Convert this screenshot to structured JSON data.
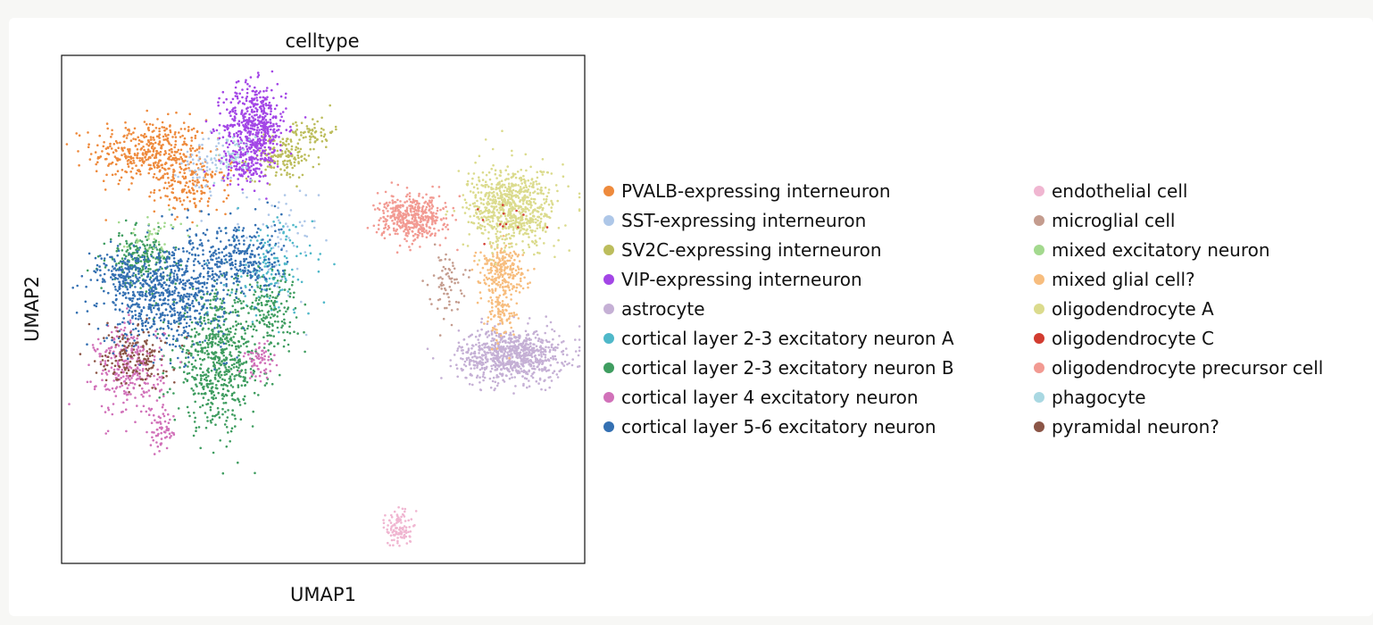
{
  "chart_data": {
    "type": "scatter",
    "title": "celltype",
    "xlabel": "UMAP1",
    "ylabel": "UMAP2",
    "xticks": "none",
    "yticks": "none",
    "grid": false,
    "legend_placement": "right",
    "legend_columns": 2,
    "xlim": [
      0,
      100
    ],
    "ylim": [
      0,
      100
    ],
    "series": [
      {
        "name": "PVALB-expressing interneuron",
        "color": "#ee8a3c",
        "clusters": [
          {
            "x": 17,
            "y": 81,
            "sx": 5.5,
            "sy": 3.2,
            "n": 420
          },
          {
            "x": 25,
            "y": 74,
            "sx": 3.5,
            "sy": 2.5,
            "n": 150
          }
        ]
      },
      {
        "name": "SST-expressing interneuron",
        "color": "#aec7e8",
        "clusters": [
          {
            "x": 28,
            "y": 79,
            "sx": 2.5,
            "sy": 3,
            "n": 70
          },
          {
            "x": 42,
            "y": 63,
            "sx": 3.5,
            "sy": 6,
            "n": 60
          }
        ]
      },
      {
        "name": "SV2C-expressing interneuron",
        "color": "#bcbd5c",
        "clusters": [
          {
            "x": 42,
            "y": 80,
            "sx": 3.2,
            "sy": 2.2,
            "n": 150
          },
          {
            "x": 48,
            "y": 85,
            "sx": 2,
            "sy": 1.5,
            "n": 60
          }
        ]
      },
      {
        "name": "VIP-expressing interneuron",
        "color": "#a346e6",
        "clusters": [
          {
            "x": 37,
            "y": 86,
            "sx": 3,
            "sy": 4.2,
            "n": 520
          },
          {
            "x": 35,
            "y": 79,
            "sx": 2,
            "sy": 2.5,
            "n": 120
          }
        ]
      },
      {
        "name": "astrocyte",
        "color": "#c5b0d5",
        "clusters": [
          {
            "x": 86,
            "y": 41,
            "sx": 5,
            "sy": 2.6,
            "n": 800
          }
        ]
      },
      {
        "name": "cortical layer 2-3 excitatory neuron A",
        "color": "#4fb8c9",
        "clusters": [
          {
            "x": 40,
            "y": 58,
            "sx": 4,
            "sy": 5,
            "n": 140
          }
        ]
      },
      {
        "name": "cortical layer 2-3 excitatory neuron B",
        "color": "#3f9d60",
        "clusters": [
          {
            "x": 30,
            "y": 40,
            "sx": 4.2,
            "sy": 6.5,
            "n": 650
          },
          {
            "x": 15,
            "y": 60,
            "sx": 3,
            "sy": 2.5,
            "n": 200
          },
          {
            "x": 40,
            "y": 50,
            "sx": 2.5,
            "sy": 4,
            "n": 160
          }
        ]
      },
      {
        "name": "cortical layer 4 excitatory neuron",
        "color": "#d171b9",
        "clusters": [
          {
            "x": 13,
            "y": 38,
            "sx": 3.2,
            "sy": 4.5,
            "n": 280
          },
          {
            "x": 38,
            "y": 40,
            "sx": 1.5,
            "sy": 1.8,
            "n": 60
          },
          {
            "x": 19,
            "y": 26,
            "sx": 1.2,
            "sy": 2.2,
            "n": 60
          }
        ]
      },
      {
        "name": "cortical layer 5-6 excitatory neuron",
        "color": "#3470b2",
        "clusters": [
          {
            "x": 20,
            "y": 53,
            "sx": 5.8,
            "sy": 5,
            "n": 750
          },
          {
            "x": 34,
            "y": 60,
            "sx": 4,
            "sy": 4,
            "n": 300
          },
          {
            "x": 11,
            "y": 57,
            "sx": 2.5,
            "sy": 2,
            "n": 100
          }
        ]
      },
      {
        "name": "endothelial cell",
        "color": "#f0b6d1",
        "clusters": [
          {
            "x": 64.5,
            "y": 7,
            "sx": 1.2,
            "sy": 1.8,
            "n": 110
          }
        ]
      },
      {
        "name": "microglial cell",
        "color": "#c49c8e",
        "clusters": [
          {
            "x": 73.5,
            "y": 55.5,
            "sx": 1.6,
            "sy": 3,
            "n": 70
          }
        ]
      },
      {
        "name": "mixed excitatory neuron",
        "color": "#a3d98e",
        "clusters": [
          {
            "x": 17,
            "y": 65,
            "sx": 3,
            "sy": 2,
            "n": 40
          }
        ]
      },
      {
        "name": "mixed glial cell?",
        "color": "#f7bd7e",
        "clusters": [
          {
            "x": 84,
            "y": 58,
            "sx": 2.4,
            "sy": 2.2,
            "n": 220
          },
          {
            "x": 84,
            "y": 50,
            "sx": 1.6,
            "sy": 2.8,
            "n": 120
          }
        ]
      },
      {
        "name": "oligodendrocyte A",
        "color": "#dbdb8d",
        "clusters": [
          {
            "x": 86,
            "y": 70,
            "sx": 4.2,
            "sy": 4,
            "n": 750
          }
        ]
      },
      {
        "name": "oligodendrocyte C",
        "color": "#d23c30",
        "clusters": [
          {
            "x": 85,
            "y": 67,
            "sx": 2.5,
            "sy": 2.5,
            "n": 12
          }
        ]
      },
      {
        "name": "oligodendrocyte precursor cell",
        "color": "#f29a92",
        "clusters": [
          {
            "x": 67,
            "y": 68,
            "sx": 3.2,
            "sy": 2.2,
            "n": 430
          }
        ]
      },
      {
        "name": "phagocyte",
        "color": "#a9d8e2",
        "clusters": [
          {
            "x": 33,
            "y": 80,
            "sx": 2,
            "sy": 2,
            "n": 40
          }
        ]
      },
      {
        "name": "pyramidal neuron?",
        "color": "#8b5546",
        "clusters": [
          {
            "x": 14,
            "y": 41,
            "sx": 3.2,
            "sy": 3.2,
            "n": 160
          }
        ]
      }
    ]
  }
}
